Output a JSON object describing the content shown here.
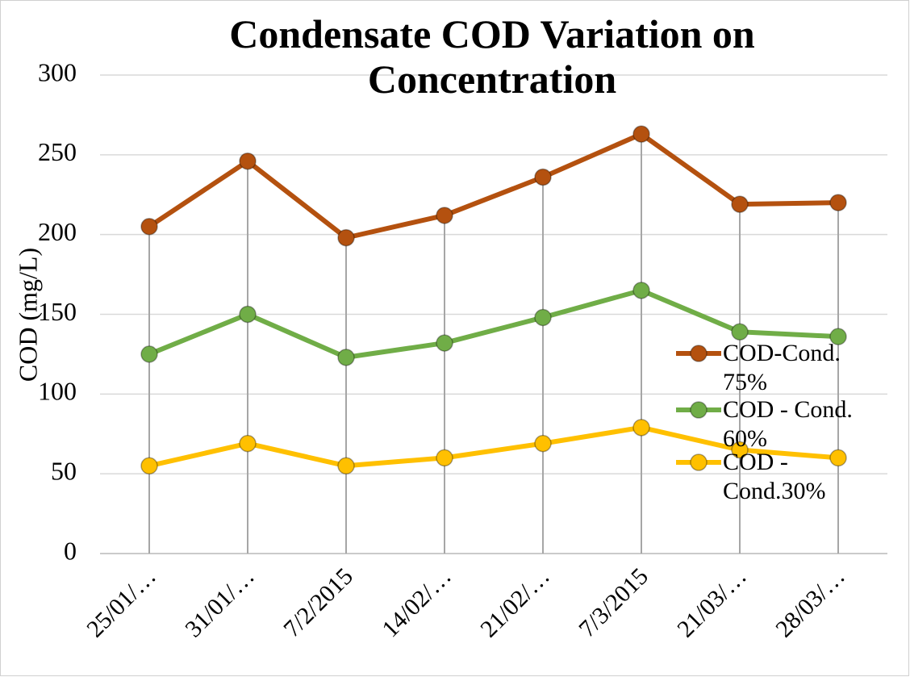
{
  "chart_data": {
    "type": "line",
    "title": "Condensate COD Variation on Concentration",
    "y_label": "COD (mg/L)",
    "categories": [
      "25/01/…",
      "31/01/…",
      "7/2/2015",
      "14/02/…",
      "21/02/…",
      "7/3/2015",
      "21/03/…",
      "28/03/…"
    ],
    "series": [
      {
        "name": "COD-Cond. 75%",
        "color": "#b4510f",
        "values": [
          205,
          246,
          198,
          212,
          236,
          263,
          219,
          220
        ]
      },
      {
        "name": "COD - Cond. 60%",
        "color": "#70ad47",
        "values": [
          125,
          150,
          123,
          132,
          148,
          165,
          139,
          136
        ]
      },
      {
        "name": "COD - Cond.30%",
        "color": "#ffc000",
        "values": [
          55,
          69,
          55,
          60,
          69,
          79,
          65,
          60
        ]
      }
    ],
    "ylim": [
      0,
      300
    ],
    "yticks": [
      0,
      50,
      100,
      150,
      200,
      250,
      300
    ],
    "grid": true,
    "legend": "right"
  }
}
